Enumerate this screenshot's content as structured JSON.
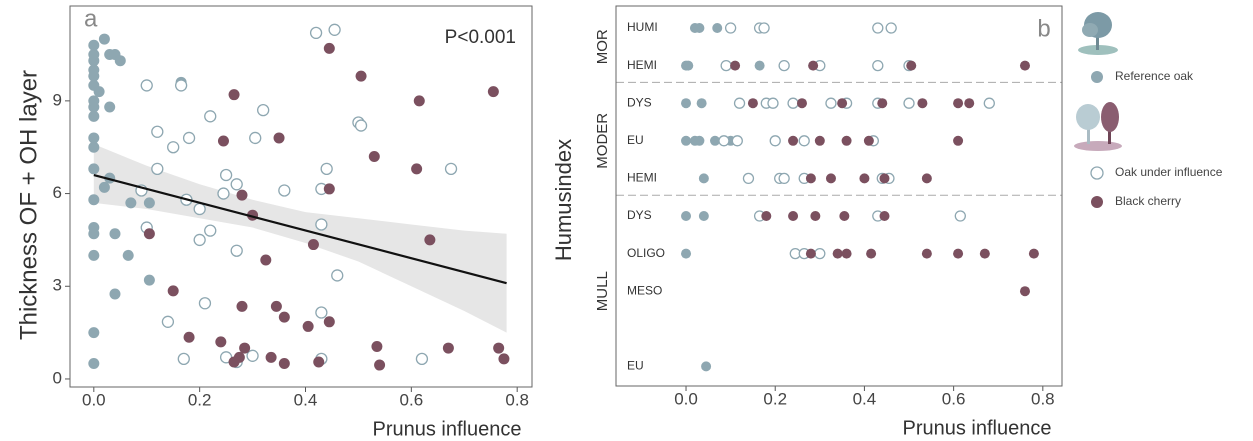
{
  "chart_data": [
    {
      "type": "scatter",
      "panel_label": "a",
      "annotation": "P<0.001",
      "x_label": "Prunus influence",
      "y_label": "Thickness OF + OH layer",
      "xlim": [
        -0.045,
        0.828
      ],
      "ylim": [
        -0.26,
        12.07
      ],
      "xticks": [
        {
          "value": 0,
          "label": "0.0"
        },
        {
          "value": 0.2,
          "label": "0.2"
        },
        {
          "value": 0.4,
          "label": "0.4"
        },
        {
          "value": 0.6,
          "label": "0.6"
        },
        {
          "value": 0.8,
          "label": "0.8"
        }
      ],
      "yticks": [
        0,
        3,
        6,
        9
      ],
      "fit": {
        "x": [
          0,
          0.78
        ],
        "y": [
          6.6,
          3.1
        ],
        "color": "#111111"
      },
      "ci": {
        "x": [
          0,
          0.1,
          0.2,
          0.3,
          0.4,
          0.5,
          0.6,
          0.7,
          0.78
        ],
        "lower": [
          5.7,
          5.5,
          5.2,
          4.9,
          4.4,
          3.8,
          3.0,
          2.2,
          1.5
        ],
        "upper": [
          7.6,
          6.9,
          6.3,
          5.8,
          5.4,
          5.2,
          5.0,
          4.8,
          4.7
        ],
        "color": "#e6e6e6"
      },
      "series": [
        {
          "name": "Reference oak",
          "color": "#8ea7b1",
          "marker": "filled",
          "x": [
            0,
            0,
            0,
            0,
            0,
            0,
            0,
            0,
            0,
            0,
            0,
            0,
            0,
            0,
            0,
            0,
            0,
            0,
            0.01,
            0.02,
            0.02,
            0.03,
            0.03,
            0.03,
            0.04,
            0.04,
            0.04,
            0.05,
            0.065,
            0.07,
            0.105,
            0.105,
            0.165
          ],
          "y": [
            0.5,
            1.5,
            4.0,
            4.7,
            4.9,
            5.8,
            6.8,
            7.5,
            7.8,
            8.5,
            8.8,
            9.0,
            9.5,
            9.8,
            10.0,
            10.3,
            10.5,
            10.8,
            9.3,
            11.0,
            6.2,
            10.5,
            8.8,
            6.5,
            10.5,
            4.7,
            2.75,
            10.3,
            4.0,
            5.7,
            5.7,
            3.2,
            9.6
          ]
        },
        {
          "name": "Oak under influence",
          "color": "#8ea7b1",
          "marker": "open",
          "x": [
            0.09,
            0.1,
            0.1,
            0.12,
            0.12,
            0.14,
            0.15,
            0.165,
            0.17,
            0.175,
            0.18,
            0.2,
            0.2,
            0.21,
            0.22,
            0.22,
            0.245,
            0.25,
            0.25,
            0.27,
            0.27,
            0.27,
            0.3,
            0.305,
            0.32,
            0.36,
            0.42,
            0.43,
            0.43,
            0.43,
            0.43,
            0.44,
            0.455,
            0.46,
            0.5,
            0.505,
            0.62,
            0.675
          ],
          "y": [
            6.1,
            4.9,
            9.5,
            8.0,
            6.8,
            1.85,
            7.5,
            9.5,
            0.65,
            5.8,
            7.8,
            5.5,
            4.5,
            2.45,
            8.5,
            4.8,
            6.0,
            6.6,
            0.7,
            4.15,
            6.3,
            0.55,
            0.75,
            7.8,
            8.7,
            6.1,
            11.2,
            6.15,
            5.0,
            2.15,
            0.65,
            6.8,
            11.3,
            3.35,
            8.3,
            8.2,
            0.65,
            6.8
          ]
        },
        {
          "name": "Black cherry",
          "color": "#7b505f",
          "marker": "filled",
          "x": [
            0.105,
            0.15,
            0.18,
            0.24,
            0.245,
            0.265,
            0.265,
            0.275,
            0.28,
            0.28,
            0.285,
            0.3,
            0.325,
            0.335,
            0.345,
            0.35,
            0.36,
            0.36,
            0.405,
            0.415,
            0.425,
            0.445,
            0.445,
            0.445,
            0.505,
            0.53,
            0.535,
            0.54,
            0.61,
            0.615,
            0.635,
            0.67,
            0.755,
            0.765,
            0.775
          ],
          "y": [
            4.7,
            2.85,
            1.35,
            1.2,
            7.7,
            9.2,
            0.55,
            0.7,
            5.95,
            2.35,
            1.0,
            5.3,
            3.85,
            0.7,
            2.35,
            7.8,
            0.5,
            2.0,
            1.7,
            4.35,
            0.55,
            10.7,
            6.15,
            1.85,
            9.8,
            7.2,
            1.05,
            0.45,
            6.8,
            9.0,
            4.5,
            1.0,
            9.3,
            1.0,
            0.65
          ]
        }
      ]
    },
    {
      "type": "strip",
      "panel_label": "b",
      "x_label": "Prunus influence",
      "y_label": "Humusindex",
      "xlim": [
        -0.157,
        0.843
      ],
      "xticks": [
        {
          "value": 0,
          "label": "0.0"
        },
        {
          "value": 0.2,
          "label": "0.2"
        },
        {
          "value": 0.4,
          "label": "0.4"
        },
        {
          "value": 0.6,
          "label": "0.6"
        },
        {
          "value": 0.8,
          "label": "0.8"
        }
      ],
      "groups": [
        {
          "name": "MOR",
          "categories": [
            "HUMI",
            "HEMI"
          ]
        },
        {
          "name": "MODER",
          "categories": [
            "DYS",
            "EU",
            "HEMI"
          ]
        },
        {
          "name": "MULL",
          "categories": [
            "DYS",
            "OLIGO",
            "MESO",
            null,
            "EU"
          ]
        }
      ],
      "series": [
        {
          "values": [
            [
              0.02,
              0.03,
              0.07
            ],
            [
              0.0,
              0.005,
              0.165
            ],
            [
              0.0,
              0.035
            ],
            [
              0.0,
              0.02,
              0.03,
              0.065,
              0.1
            ],
            [
              0.04
            ],
            [
              0.0,
              0.04
            ],
            [
              0.0
            ],
            [],
            [],
            [
              0.045
            ]
          ]
        },
        {
          "values": [
            [
              0.1,
              0.165,
              0.175,
              0.43,
              0.46
            ],
            [
              0.09,
              0.22,
              0.3,
              0.43,
              0.5
            ],
            [
              0.12,
              0.18,
              0.195,
              0.24,
              0.325,
              0.36,
              0.43,
              0.5,
              0.68
            ],
            [
              0.085,
              0.115,
              0.2,
              0.265,
              0.42
            ],
            [
              0.14,
              0.21,
              0.22,
              0.265,
              0.44,
              0.455
            ],
            [
              0.165,
              0.43,
              0.615
            ],
            [
              0.245,
              0.265,
              0.3
            ],
            [],
            [],
            []
          ]
        },
        {
          "values": [
            [],
            [
              0.11,
              0.285,
              0.505,
              0.76
            ],
            [
              0.15,
              0.26,
              0.35,
              0.44,
              0.53,
              0.61,
              0.635
            ],
            [
              0.24,
              0.3,
              0.36,
              0.41,
              0.61
            ],
            [
              0.28,
              0.325,
              0.4,
              0.445,
              0.54
            ],
            [
              0.18,
              0.24,
              0.29,
              0.355,
              0.445
            ],
            [
              0.28,
              0.34,
              0.36,
              0.415,
              0.54,
              0.61,
              0.67,
              0.78
            ],
            [
              0.76
            ],
            [],
            []
          ]
        }
      ]
    }
  ]
}
